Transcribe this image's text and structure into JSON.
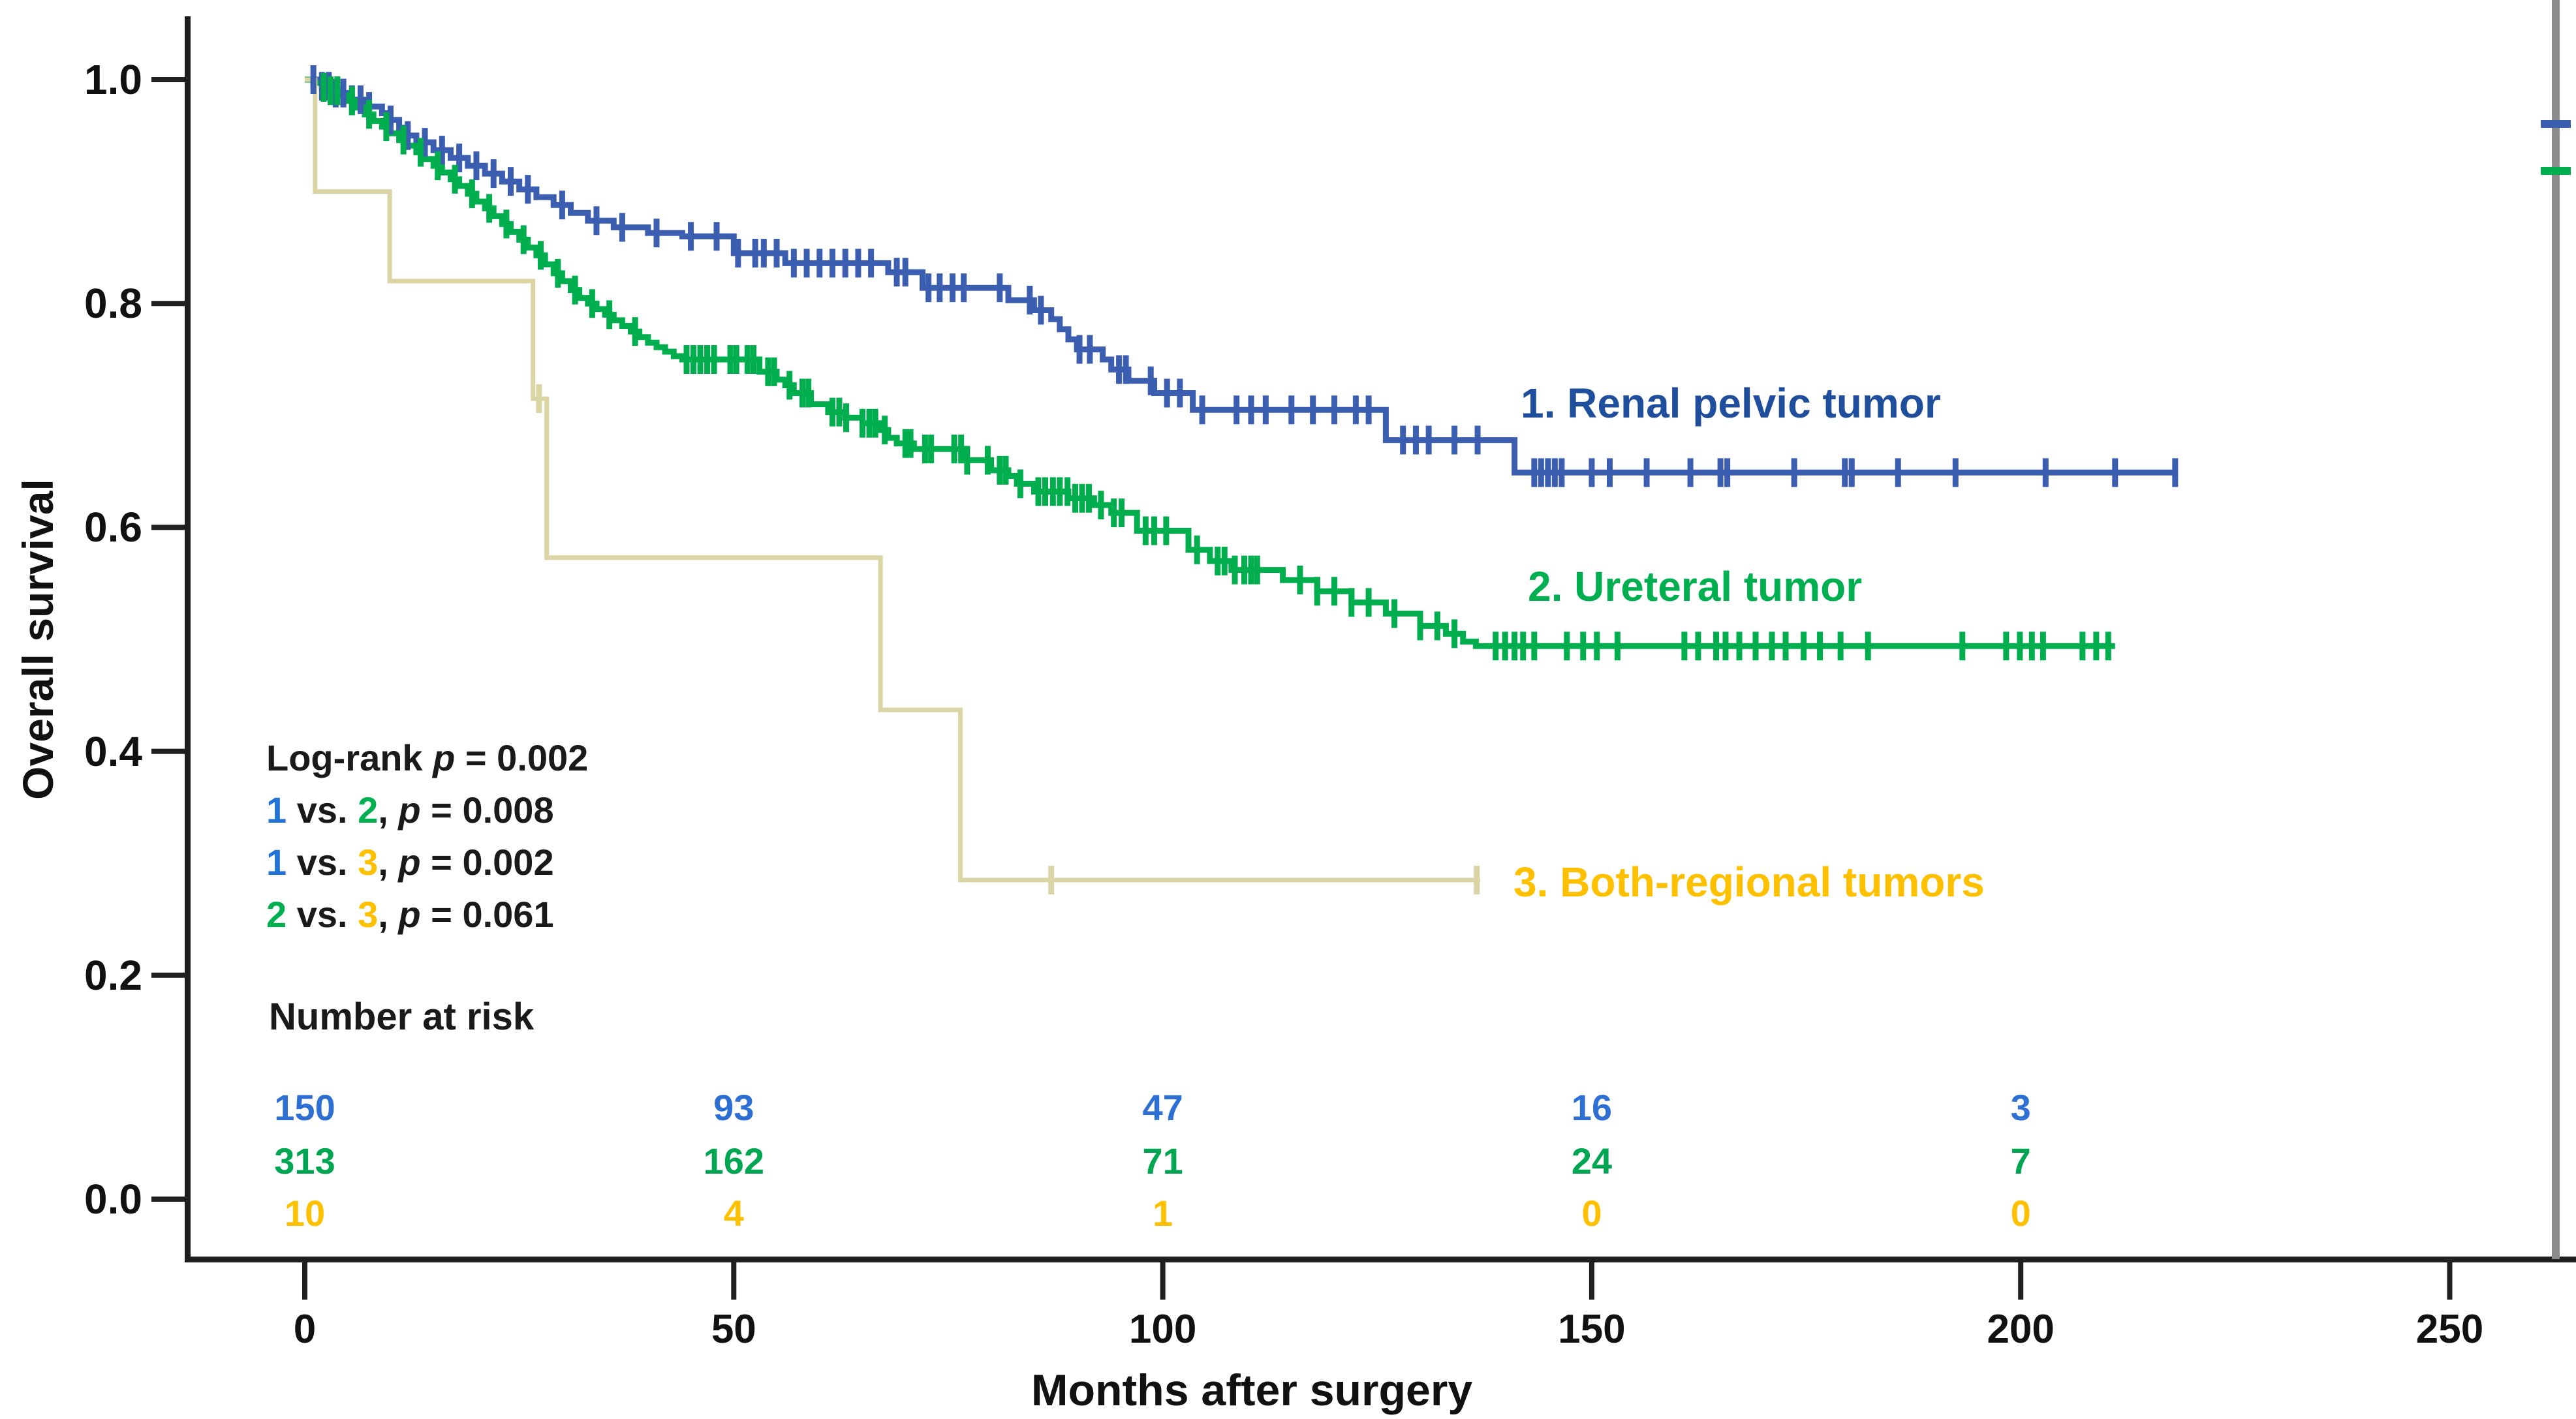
{
  "figure": {
    "background": "#ffffff",
    "axis_color": "#1f1f1f"
  },
  "chart_data": {
    "type": "line",
    "subtype": "kaplan-meier-step",
    "title": "",
    "xlabel": "Months after surgery",
    "ylabel": "Overall survival",
    "xlim": [
      0,
      264
    ],
    "ylim": [
      0.0,
      1.0
    ],
    "grid": false,
    "legend_position": "labels-on-plot",
    "x_ticks": [
      {
        "label": "0",
        "value": 0
      },
      {
        "label": "50",
        "value": 50
      },
      {
        "label": "100",
        "value": 100
      },
      {
        "label": "150",
        "value": 150
      },
      {
        "label": "200",
        "value": 200
      },
      {
        "label": "250",
        "value": 250
      }
    ],
    "y_ticks": [
      {
        "label": "1.0",
        "value": 1.0
      },
      {
        "label": "0.8",
        "value": 0.8
      },
      {
        "label": "0.6",
        "value": 0.6
      },
      {
        "label": "0.4",
        "value": 0.4
      },
      {
        "label": "0.2",
        "value": 0.2
      },
      {
        "label": "0.0",
        "value": 0.0
      }
    ],
    "series": [
      {
        "id": "renal-pelvic-tumor",
        "label": "1. Renal pelvic tumor",
        "group_number": "1",
        "curve_color": "#3b5eb0",
        "label_color": "#1f4e9c",
        "risk_color": "#2e6fd3",
        "line_width": 9,
        "end_month": 218,
        "steps": [
          [
            0,
            1.0
          ],
          [
            2,
            0.994
          ],
          [
            3,
            0.988
          ],
          [
            5,
            0.982
          ],
          [
            7,
            0.976
          ],
          [
            9,
            0.97
          ],
          [
            10,
            0.964
          ],
          [
            11,
            0.957
          ],
          [
            12,
            0.95
          ],
          [
            13,
            0.944
          ],
          [
            15,
            0.937
          ],
          [
            17,
            0.93
          ],
          [
            19,
            0.923
          ],
          [
            21,
            0.916
          ],
          [
            23,
            0.909
          ],
          [
            25,
            0.902
          ],
          [
            27,
            0.895
          ],
          [
            29,
            0.888
          ],
          [
            31,
            0.881
          ],
          [
            33,
            0.874
          ],
          [
            36,
            0.868
          ],
          [
            40,
            0.863
          ],
          [
            44,
            0.86
          ],
          [
            50,
            0.845
          ],
          [
            56,
            0.836
          ],
          [
            68,
            0.828
          ],
          [
            72,
            0.814
          ],
          [
            82,
            0.803
          ],
          [
            85,
            0.794
          ],
          [
            87,
            0.786
          ],
          [
            88,
            0.777
          ],
          [
            89,
            0.768
          ],
          [
            90,
            0.759
          ],
          [
            93,
            0.75
          ],
          [
            94,
            0.741
          ],
          [
            96,
            0.731
          ],
          [
            99,
            0.72
          ],
          [
            103.5,
            0.705
          ],
          [
            126,
            0.678
          ],
          [
            141,
            0.649
          ]
        ],
        "censor_months": [
          1,
          2,
          2.8,
          3.6,
          4.5,
          5.5,
          6.5,
          7.5,
          10,
          12,
          14,
          16,
          18,
          20,
          22,
          24,
          26,
          30,
          34,
          37,
          41,
          45,
          48,
          50.5,
          52.5,
          53.5,
          55,
          57,
          58.5,
          60,
          61.5,
          63,
          64.5,
          66,
          69,
          70,
          72.7,
          74,
          75.5,
          76.8,
          81,
          84.5,
          85.8,
          90.3,
          91.5,
          94.9,
          95.7,
          98.6,
          100.5,
          102,
          104.6,
          108.6,
          110.3,
          112,
          115,
          117.5,
          120,
          122.5,
          124,
          128,
          129.5,
          131,
          134,
          136.7,
          143.3,
          144.1,
          144.9,
          145.7,
          146.5,
          150,
          152.1,
          156.4,
          161.5,
          165,
          165.8,
          173.6,
          179.5,
          180.3,
          185.7,
          192.4,
          202.9,
          211,
          218
        ]
      },
      {
        "id": "ureteral-tumor",
        "label": "2. Ureteral tumor",
        "group_number": "2",
        "curve_color": "#00ae4e",
        "label_color": "#00b050",
        "risk_color": "#00a651",
        "line_width": 9,
        "end_month": 211,
        "steps": [
          [
            0,
            1.0
          ],
          [
            1,
            0.997
          ],
          [
            2,
            0.993
          ],
          [
            3,
            0.99
          ],
          [
            4,
            0.986
          ],
          [
            5,
            0.981
          ],
          [
            6,
            0.975
          ],
          [
            7,
            0.969
          ],
          [
            8,
            0.963
          ],
          [
            9,
            0.958
          ],
          [
            10,
            0.952
          ],
          [
            11,
            0.946
          ],
          [
            12,
            0.941
          ],
          [
            13,
            0.935
          ],
          [
            14,
            0.929
          ],
          [
            15,
            0.923
          ],
          [
            16,
            0.917
          ],
          [
            17,
            0.911
          ],
          [
            18,
            0.905
          ],
          [
            19,
            0.898
          ],
          [
            20,
            0.891
          ],
          [
            21,
            0.885
          ],
          [
            22,
            0.878
          ],
          [
            23,
            0.871
          ],
          [
            24,
            0.864
          ],
          [
            25,
            0.857
          ],
          [
            26,
            0.85
          ],
          [
            27,
            0.843
          ],
          [
            28,
            0.835
          ],
          [
            29,
            0.827
          ],
          [
            30,
            0.82
          ],
          [
            31,
            0.812
          ],
          [
            32,
            0.805
          ],
          [
            33,
            0.8
          ],
          [
            34,
            0.795
          ],
          [
            35,
            0.79
          ],
          [
            36,
            0.785
          ],
          [
            37,
            0.78
          ],
          [
            38,
            0.775
          ],
          [
            39,
            0.77
          ],
          [
            40,
            0.765
          ],
          [
            41,
            0.761
          ],
          [
            42,
            0.757
          ],
          [
            43,
            0.753
          ],
          [
            44,
            0.75
          ],
          [
            53,
            0.739
          ],
          [
            55,
            0.732
          ],
          [
            56,
            0.727
          ],
          [
            57,
            0.72
          ],
          [
            59,
            0.71
          ],
          [
            61,
            0.703
          ],
          [
            63,
            0.698
          ],
          [
            65,
            0.693
          ],
          [
            67,
            0.687
          ],
          [
            68,
            0.68
          ],
          [
            69,
            0.675
          ],
          [
            71,
            0.67
          ],
          [
            77,
            0.66
          ],
          [
            80,
            0.651
          ],
          [
            82,
            0.646
          ],
          [
            83,
            0.639
          ],
          [
            85,
            0.632
          ],
          [
            89,
            0.626
          ],
          [
            92,
            0.62
          ],
          [
            94,
            0.613
          ],
          [
            97,
            0.597
          ],
          [
            103,
            0.58
          ],
          [
            105.5,
            0.57
          ],
          [
            108,
            0.562
          ],
          [
            114,
            0.553
          ],
          [
            118,
            0.543
          ],
          [
            122,
            0.533
          ],
          [
            126,
            0.523
          ],
          [
            130,
            0.512
          ],
          [
            133,
            0.505
          ],
          [
            135,
            0.498
          ],
          [
            136.5,
            0.494
          ]
        ],
        "censor_months": [
          2.2,
          3,
          3.8,
          5.5,
          7.5,
          9.5,
          11.5,
          13.5,
          15.5,
          17.5,
          19.5,
          21.5,
          23.5,
          25.5,
          27.5,
          29.5,
          31.5,
          33.5,
          35.5,
          38.5,
          44.5,
          45.3,
          46.1,
          46.9,
          47.7,
          49.6,
          50.3,
          51.6,
          52.3,
          54,
          54.7,
          56.5,
          58,
          58.7,
          61.5,
          62.3,
          63.1,
          65,
          65.8,
          66.5,
          67.6,
          70,
          70.6,
          72.3,
          73,
          75.7,
          76.5,
          77.2,
          79.6,
          81,
          81.7,
          83.4,
          85.5,
          86.3,
          87.2,
          88,
          88.9,
          89.8,
          90.6,
          91.4,
          92.8,
          94.3,
          95.2,
          98,
          99,
          100.4,
          104,
          106.4,
          107.2,
          108.4,
          109.5,
          110.3,
          111,
          116,
          118,
          120,
          122,
          124,
          127,
          130,
          132,
          134,
          138.8,
          139.9,
          141,
          142,
          143.3,
          147.1,
          149,
          150.6,
          153,
          160.8,
          162.4,
          164.5,
          165.6,
          167.2,
          169.1,
          171,
          172.6,
          174.7,
          176.6,
          179,
          182.2,
          193.2,
          198.3,
          199.9,
          201.3,
          202.6,
          207.2,
          208.8,
          210.2
        ]
      },
      {
        "id": "both-regional-tumors",
        "label": "3. Both-regional tumors",
        "group_number": "3",
        "curve_color": "#dbd5a6",
        "label_color": "#ffc000",
        "risk_color": "#ffc000",
        "line_width": 7,
        "end_month": 137,
        "steps": [
          [
            0,
            1.0
          ],
          [
            1.2,
            0.9
          ],
          [
            9.9,
            0.82
          ],
          [
            26.6,
            0.715
          ],
          [
            28.2,
            0.573
          ],
          [
            67.1,
            0.437
          ],
          [
            76.4,
            0.285
          ]
        ],
        "censor_months": [
          27.3,
          87,
          136.6
        ]
      }
    ],
    "annotations": {
      "lines": [
        {
          "pre": "Log-rank ",
          "p": "p",
          "eq": " = ",
          "val": "0.002"
        },
        {
          "a": "1",
          "a_class": "c-blue",
          "vs": " vs. ",
          "b": "2",
          "b_class": "c-green",
          "comma": ", ",
          "p": "p",
          "eq": " = ",
          "val": "0.008"
        },
        {
          "a": "1",
          "a_class": "c-blue",
          "vs": " vs. ",
          "b": "3",
          "b_class": "c-yellow",
          "comma": ", ",
          "p": "p",
          "eq": " = ",
          "val": "0.002"
        },
        {
          "a": "2",
          "a_class": "c-green",
          "vs": " vs. ",
          "b": "3",
          "b_class": "c-yellow",
          "comma": ", ",
          "p": "p",
          "eq": " = ",
          "val": "0.061"
        }
      ]
    },
    "risk_table": {
      "title": "Number at risk",
      "times": [
        0,
        50,
        100,
        150,
        200
      ],
      "rows": [
        {
          "series": "renal-pelvic-tumor",
          "color": "#2e6fd3",
          "counts": [
            150,
            93,
            47,
            16,
            3
          ]
        },
        {
          "series": "ureteral-tumor",
          "color": "#00a651",
          "counts": [
            313,
            162,
            71,
            24,
            7
          ]
        },
        {
          "series": "both-regional-tumors",
          "color": "#ffc000",
          "counts": [
            10,
            4,
            1,
            0,
            0
          ]
        }
      ]
    },
    "edge_line": {
      "color": "#8c8c8c",
      "marks": [
        {
          "color": "#3b5eb0",
          "y": 190
        },
        {
          "color": "#00ae4e",
          "y": 262
        }
      ]
    }
  }
}
